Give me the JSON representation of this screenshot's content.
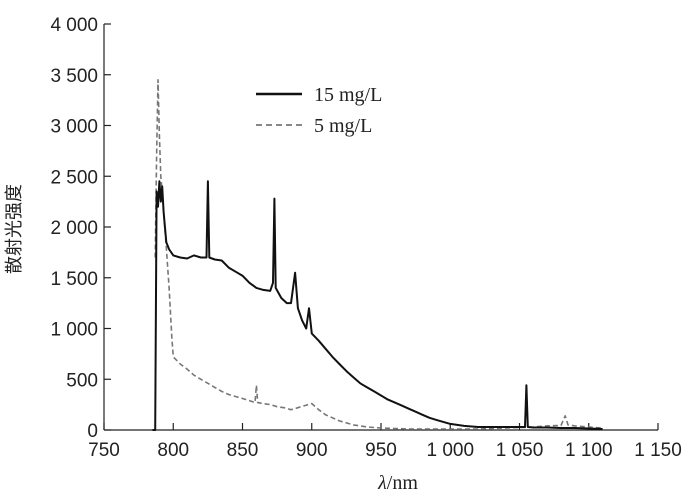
{
  "chart_data": {
    "type": "line",
    "xlabel_italic": "λ",
    "xlabel_rest": "/nm",
    "ylabel": "散射光强度",
    "xlim": [
      750,
      1150
    ],
    "ylim": [
      0,
      4000
    ],
    "x_ticks": [
      750,
      800,
      850,
      900,
      950,
      1000,
      1050,
      1100,
      1150
    ],
    "x_tick_labels": [
      "750",
      "800",
      "850",
      "900",
      "950",
      "1 000",
      "1 050",
      "1 100",
      "1 150"
    ],
    "y_ticks": [
      0,
      500,
      1000,
      1500,
      2000,
      2500,
      3000,
      3500,
      4000
    ],
    "y_tick_labels": [
      "0",
      "500",
      "1 000",
      "1 500",
      "2 000",
      "2 500",
      "3 000",
      "3 500",
      "4 000"
    ],
    "legend_position": "top-center",
    "series": [
      {
        "name": "15 mg/L",
        "color": "#111111",
        "dash": "solid",
        "points": [
          [
            785,
            0
          ],
          [
            787,
            0
          ],
          [
            788,
            2350
          ],
          [
            789,
            2200
          ],
          [
            790,
            2450
          ],
          [
            791,
            2250
          ],
          [
            792,
            2400
          ],
          [
            793,
            2150
          ],
          [
            795,
            1850
          ],
          [
            797,
            1780
          ],
          [
            800,
            1720
          ],
          [
            805,
            1700
          ],
          [
            810,
            1690
          ],
          [
            815,
            1720
          ],
          [
            820,
            1700
          ],
          [
            824,
            1700
          ],
          [
            825,
            2450
          ],
          [
            826,
            1700
          ],
          [
            830,
            1680
          ],
          [
            835,
            1670
          ],
          [
            840,
            1600
          ],
          [
            845,
            1560
          ],
          [
            850,
            1520
          ],
          [
            855,
            1450
          ],
          [
            860,
            1400
          ],
          [
            865,
            1380
          ],
          [
            870,
            1370
          ],
          [
            872,
            1450
          ],
          [
            873,
            2280
          ],
          [
            874,
            1400
          ],
          [
            878,
            1300
          ],
          [
            882,
            1250
          ],
          [
            885,
            1250
          ],
          [
            888,
            1550
          ],
          [
            890,
            1200
          ],
          [
            893,
            1080
          ],
          [
            896,
            1000
          ],
          [
            898,
            1200
          ],
          [
            900,
            950
          ],
          [
            905,
            880
          ],
          [
            910,
            800
          ],
          [
            915,
            720
          ],
          [
            920,
            650
          ],
          [
            925,
            580
          ],
          [
            930,
            520
          ],
          [
            935,
            460
          ],
          [
            940,
            420
          ],
          [
            945,
            380
          ],
          [
            950,
            340
          ],
          [
            955,
            300
          ],
          [
            960,
            270
          ],
          [
            965,
            240
          ],
          [
            970,
            210
          ],
          [
            975,
            180
          ],
          [
            980,
            150
          ],
          [
            985,
            120
          ],
          [
            990,
            100
          ],
          [
            995,
            80
          ],
          [
            1000,
            60
          ],
          [
            1005,
            50
          ],
          [
            1010,
            40
          ],
          [
            1020,
            30
          ],
          [
            1030,
            30
          ],
          [
            1040,
            30
          ],
          [
            1050,
            30
          ],
          [
            1054,
            30
          ],
          [
            1055,
            440
          ],
          [
            1056,
            30
          ],
          [
            1060,
            25
          ],
          [
            1070,
            25
          ],
          [
            1080,
            20
          ],
          [
            1090,
            20
          ],
          [
            1100,
            15
          ],
          [
            1110,
            10
          ]
        ]
      },
      {
        "name": "5 mg/L",
        "color": "#777777",
        "dash": "dashed",
        "points": [
          [
            787,
            1700
          ],
          [
            788,
            2700
          ],
          [
            789,
            3450
          ],
          [
            790,
            2900
          ],
          [
            791,
            2500
          ],
          [
            792,
            2350
          ],
          [
            793,
            2150
          ],
          [
            795,
            1800
          ],
          [
            797,
            1400
          ],
          [
            799,
            900
          ],
          [
            800,
            720
          ],
          [
            805,
            650
          ],
          [
            810,
            600
          ],
          [
            815,
            540
          ],
          [
            820,
            500
          ],
          [
            825,
            460
          ],
          [
            830,
            420
          ],
          [
            835,
            380
          ],
          [
            840,
            350
          ],
          [
            845,
            330
          ],
          [
            850,
            310
          ],
          [
            855,
            290
          ],
          [
            859,
            270
          ],
          [
            860,
            440
          ],
          [
            861,
            270
          ],
          [
            865,
            260
          ],
          [
            870,
            250
          ],
          [
            875,
            230
          ],
          [
            880,
            220
          ],
          [
            885,
            200
          ],
          [
            890,
            220
          ],
          [
            895,
            240
          ],
          [
            900,
            260
          ],
          [
            905,
            200
          ],
          [
            910,
            150
          ],
          [
            915,
            120
          ],
          [
            920,
            90
          ],
          [
            925,
            70
          ],
          [
            930,
            50
          ],
          [
            935,
            40
          ],
          [
            940,
            30
          ],
          [
            950,
            20
          ],
          [
            960,
            15
          ],
          [
            970,
            10
          ],
          [
            980,
            10
          ],
          [
            1000,
            10
          ],
          [
            1020,
            10
          ],
          [
            1040,
            20
          ],
          [
            1050,
            25
          ],
          [
            1060,
            30
          ],
          [
            1070,
            40
          ],
          [
            1080,
            45
          ],
          [
            1083,
            140
          ],
          [
            1085,
            50
          ],
          [
            1090,
            40
          ],
          [
            1100,
            30
          ],
          [
            1110,
            20
          ]
        ]
      }
    ]
  }
}
